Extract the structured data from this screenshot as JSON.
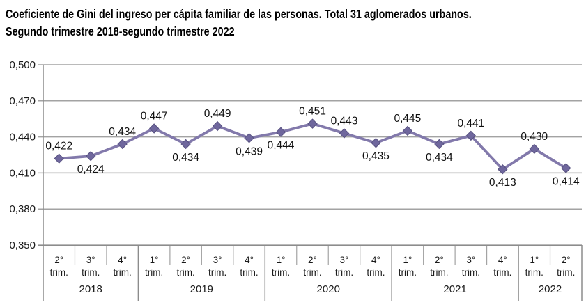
{
  "header": {
    "title_line1": "Coeficiente de Gini del ingreso per cápita familiar de las personas. Total 31 aglomerados urbanos.",
    "title_line2": "Segundo trimestre 2018-segundo trimestre 2022"
  },
  "colors": {
    "line": "#8279ab",
    "marker_fill": "#6f679d",
    "marker_stroke": "#575180",
    "grid": "#a3a3a3",
    "axis": "#8c8c8c",
    "tick_text": "#1a1a1a",
    "point_label_text": "#111111"
  },
  "chart_data": {
    "type": "line",
    "title": "Coeficiente de Gini del ingreso per cápita familiar de las personas. Total 31 aglomerados urbanos. Segundo trimestre 2018-segundo trimestre 2022",
    "xlabel": "",
    "ylabel": "",
    "ylim": [
      0.35,
      0.5
    ],
    "grid": true,
    "legend_position": "none",
    "y_ticks": [
      {
        "value": 0.5,
        "label": "0,500"
      },
      {
        "value": 0.47,
        "label": "0,470"
      },
      {
        "value": 0.44,
        "label": "0,440"
      },
      {
        "value": 0.41,
        "label": "0,410"
      },
      {
        "value": 0.38,
        "label": "0,380"
      },
      {
        "value": 0.35,
        "label": "0,350"
      }
    ],
    "quarter_sublabel": "trim.",
    "points": [
      {
        "quarter": "2°",
        "year": "2018",
        "value": 0.422,
        "label": "0,422",
        "label_pos": "above"
      },
      {
        "quarter": "3°",
        "year": "2018",
        "value": 0.424,
        "label": "0,424",
        "label_pos": "below"
      },
      {
        "quarter": "4°",
        "year": "2018",
        "value": 0.434,
        "label": "0,434",
        "label_pos": "above"
      },
      {
        "quarter": "1°",
        "year": "2019",
        "value": 0.447,
        "label": "0,447",
        "label_pos": "above"
      },
      {
        "quarter": "2°",
        "year": "2019",
        "value": 0.434,
        "label": "0,434",
        "label_pos": "below"
      },
      {
        "quarter": "3°",
        "year": "2019",
        "value": 0.449,
        "label": "0,449",
        "label_pos": "above"
      },
      {
        "quarter": "4°",
        "year": "2019",
        "value": 0.439,
        "label": "0,439",
        "label_pos": "below"
      },
      {
        "quarter": "1°",
        "year": "2020",
        "value": 0.444,
        "label": "0,444",
        "label_pos": "below"
      },
      {
        "quarter": "2°",
        "year": "2020",
        "value": 0.451,
        "label": "0,451",
        "label_pos": "above"
      },
      {
        "quarter": "3°",
        "year": "2020",
        "value": 0.443,
        "label": "0,443",
        "label_pos": "above"
      },
      {
        "quarter": "4°",
        "year": "2020",
        "value": 0.435,
        "label": "0,435",
        "label_pos": "below"
      },
      {
        "quarter": "1°",
        "year": "2021",
        "value": 0.445,
        "label": "0,445",
        "label_pos": "above"
      },
      {
        "quarter": "2°",
        "year": "2021",
        "value": 0.434,
        "label": "0,434",
        "label_pos": "below"
      },
      {
        "quarter": "3°",
        "year": "2021",
        "value": 0.441,
        "label": "0,441",
        "label_pos": "above"
      },
      {
        "quarter": "4°",
        "year": "2021",
        "value": 0.413,
        "label": "0,413",
        "label_pos": "below"
      },
      {
        "quarter": "1°",
        "year": "2022",
        "value": 0.43,
        "label": "0,430",
        "label_pos": "above"
      },
      {
        "quarter": "2°",
        "year": "2022",
        "value": 0.414,
        "label": "0,414",
        "label_pos": "below"
      }
    ],
    "year_groups": [
      {
        "label": "2018",
        "quarters": 3
      },
      {
        "label": "2019",
        "quarters": 4
      },
      {
        "label": "2020",
        "quarters": 4
      },
      {
        "label": "2021",
        "quarters": 4
      },
      {
        "label": "2022",
        "quarters": 2
      }
    ]
  }
}
